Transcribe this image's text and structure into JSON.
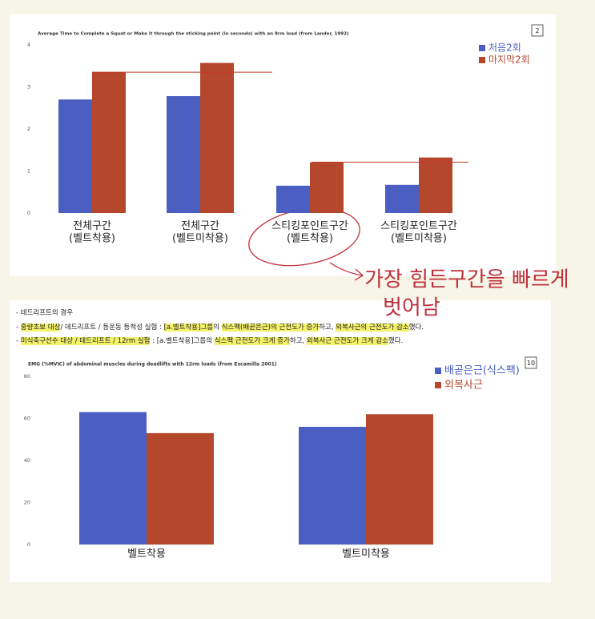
{
  "chart_data": [
    {
      "type": "bar",
      "title": "Average Time to Complete a Squat or Make it through the sticking point (in seconds) with an 8rm load (from Lander, 1992)",
      "page_number": 2,
      "categories": [
        "전체구간\n(벨트착용)",
        "전체구간\n(벨트미착용)",
        "스티킹포인트구간\n(벨트착용)",
        "스티킹포인트구간\n(벨트미착용)"
      ],
      "series": [
        {
          "name": "처음2회",
          "color": "#4a5fc1",
          "values": [
            2.7,
            2.78,
            0.65,
            0.67
          ]
        },
        {
          "name": "마지막2회",
          "color": "#b5472d",
          "values": [
            3.35,
            3.57,
            1.21,
            1.32
          ]
        }
      ],
      "reference_lines": [
        3.35,
        1.21
      ],
      "reference_color": "#c0392b",
      "ylim": [
        0,
        4
      ],
      "yticks": [
        0,
        1,
        2,
        3,
        4
      ],
      "grid": false,
      "legend": "top-right"
    },
    {
      "type": "bar",
      "title": "EMG (%MVIC) of abdominal muscles during deadlifts with 12rm loads (from Escamilla 2001)",
      "page_number": 10,
      "categories": [
        "벨트착용",
        "벨트미착용"
      ],
      "series": [
        {
          "name": "배곧은근(식스팩)",
          "color": "#4a5fc1",
          "values": [
            63,
            56
          ]
        },
        {
          "name": "외복사근",
          "color": "#b5472d",
          "values": [
            53,
            62
          ]
        }
      ],
      "ylim": [
        0,
        80
      ],
      "yticks": [
        0,
        20,
        40,
        60,
        80
      ],
      "grid": false,
      "legend": "top-right"
    }
  ],
  "notes": [
    [
      {
        "text": "- 데드리프트의 경우",
        "highlight": false
      }
    ],
    [
      {
        "text": "- ",
        "highlight": false
      },
      {
        "text": "중량초보 대상",
        "highlight": true
      },
      {
        "text": "/ 데드리프트 / 등운동 등척성 실험 : ",
        "highlight": false
      },
      {
        "text": "[a.벨트착용]그룹",
        "highlight": true
      },
      {
        "text": "의 ",
        "highlight": false
      },
      {
        "text": "식스팩(배곧은근)의 근전도가 증가",
        "highlight": true
      },
      {
        "text": "하고, ",
        "highlight": false
      },
      {
        "text": "외복사근의 근전도가 감소",
        "highlight": true
      },
      {
        "text": "했다.",
        "highlight": false
      }
    ],
    [
      {
        "text": "- ",
        "highlight": false
      },
      {
        "text": "미식축구선수 대상 / 데드리프트 / 12rm 실험",
        "highlight": true
      },
      {
        "text": " : [a.벨트착용]그룹의 ",
        "highlight": false
      },
      {
        "text": "식스팩 근전도가 크게 증가",
        "highlight": true
      },
      {
        "text": "하고, ",
        "highlight": false
      },
      {
        "text": "외복사근 근전도가 크게 감소",
        "highlight": true
      },
      {
        "text": "했다.",
        "highlight": false
      }
    ]
  ],
  "handwriting": [
    "가장 힘든구간을 빠르게",
    "벗어남"
  ]
}
